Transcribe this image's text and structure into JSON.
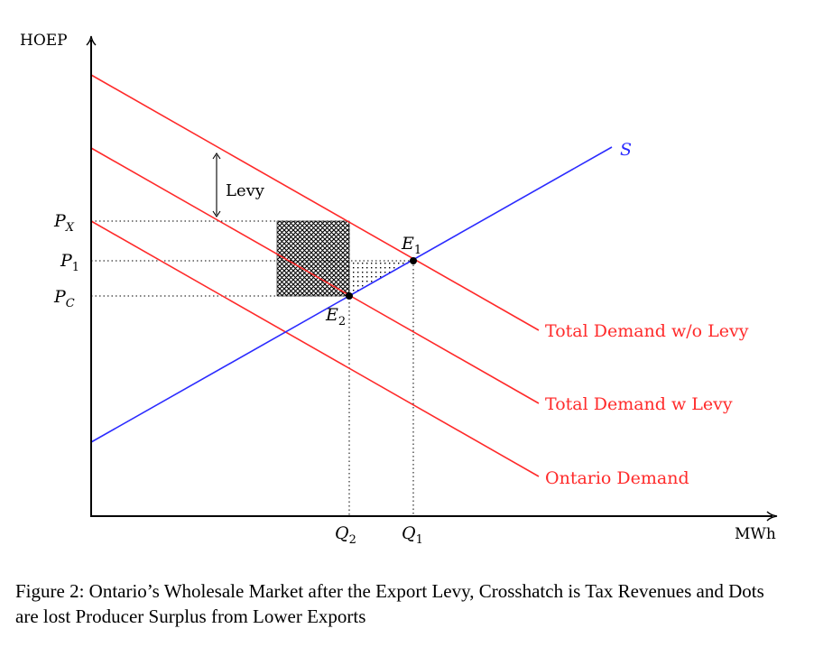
{
  "axes": {
    "y_label": "HOEP",
    "x_label": "MWh"
  },
  "price_labels": {
    "px": {
      "main": "P",
      "sub": "X"
    },
    "p1": {
      "main": "P",
      "sub": "1"
    },
    "pc": {
      "main": "P",
      "sub": "C"
    }
  },
  "quantity_labels": {
    "q2": {
      "main": "Q",
      "sub": "2"
    },
    "q1": {
      "main": "Q",
      "sub": "1"
    }
  },
  "equilibria": {
    "e1": {
      "main": "E",
      "sub": "1"
    },
    "e2": {
      "main": "E",
      "sub": "2"
    }
  },
  "curves": {
    "supply": {
      "label": "S",
      "color": "#2b2bff"
    },
    "total_wo_levy": {
      "label": "Total Demand w/o Levy",
      "color": "#ff2a2a"
    },
    "total_w_levy": {
      "label": "Total Demand w Levy",
      "color": "#ff2a2a"
    },
    "ontario": {
      "label": "Ontario Demand",
      "color": "#ff2a2a"
    }
  },
  "levy_label": "Levy",
  "caption": "Figure 2: Ontario’s Wholesale Market after the Export Levy, Crosshatch is Tax Revenues and Dots are lost Producer Surplus from Lower Exports"
}
